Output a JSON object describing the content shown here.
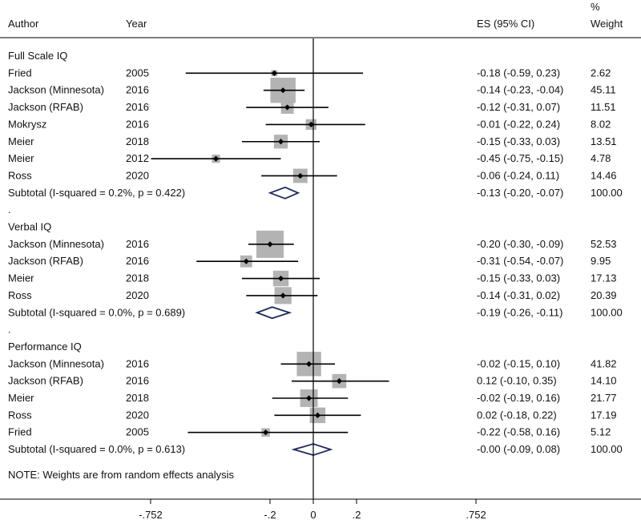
{
  "chart_data": {
    "type": "forest",
    "header": {
      "author": "Author",
      "year": "Year",
      "es": "ES (95% CI)",
      "weight_line1": "%",
      "weight_line2": "Weight"
    },
    "null_line": 0,
    "xlim": [
      -0.752,
      0.752
    ],
    "ticks": [
      {
        "value": -0.752,
        "label": "-.752"
      },
      {
        "value": -0.2,
        "label": "-.2"
      },
      {
        "value": 0,
        "label": "0"
      },
      {
        "value": 0.2,
        "label": ".2"
      },
      {
        "value": 0.752,
        "label": ".752"
      }
    ],
    "groups": [
      {
        "label": "Full Scale IQ",
        "studies": [
          {
            "author": "Fried",
            "year": "2005",
            "es": -0.18,
            "lo": -0.59,
            "hi": 0.23,
            "ci_text": "-0.18 (-0.59, 0.23)",
            "weight": 2.62,
            "weight_text": "2.62"
          },
          {
            "author": "Jackson (Minnesota)",
            "year": "2016",
            "es": -0.14,
            "lo": -0.23,
            "hi": -0.04,
            "ci_text": "-0.14 (-0.23, -0.04)",
            "weight": 45.11,
            "weight_text": "45.11"
          },
          {
            "author": "Jackson (RFAB)",
            "year": "2016",
            "es": -0.12,
            "lo": -0.31,
            "hi": 0.07,
            "ci_text": "-0.12 (-0.31, 0.07)",
            "weight": 11.51,
            "weight_text": "11.51"
          },
          {
            "author": "Mokrysz",
            "year": "2016",
            "es": -0.01,
            "lo": -0.22,
            "hi": 0.24,
            "ci_text": "-0.01 (-0.22, 0.24)",
            "weight": 8.02,
            "weight_text": "8.02"
          },
          {
            "author": "Meier",
            "year": "2018",
            "es": -0.15,
            "lo": -0.33,
            "hi": 0.03,
            "ci_text": "-0.15 (-0.33, 0.03)",
            "weight": 13.51,
            "weight_text": "13.51"
          },
          {
            "author": "Meier",
            "year": "2012",
            "es": -0.45,
            "lo": -0.75,
            "hi": -0.15,
            "ci_text": "-0.45 (-0.75, -0.15)",
            "weight": 4.78,
            "weight_text": "4.78"
          },
          {
            "author": "Ross",
            "year": "2020",
            "es": -0.06,
            "lo": -0.24,
            "hi": 0.11,
            "ci_text": "-0.06 (-0.24, 0.11)",
            "weight": 14.46,
            "weight_text": "14.46"
          }
        ],
        "subtotal": {
          "label": "Subtotal  (I-squared = 0.2%, p = 0.422)",
          "es": -0.13,
          "lo": -0.2,
          "hi": -0.07,
          "ci_text": "-0.13 (-0.20, -0.07)",
          "weight_text": "100.00"
        }
      },
      {
        "label": "Verbal IQ",
        "studies": [
          {
            "author": "Jackson (Minnesota)",
            "year": "2016",
            "es": -0.2,
            "lo": -0.3,
            "hi": -0.09,
            "ci_text": "-0.20 (-0.30, -0.09)",
            "weight": 52.53,
            "weight_text": "52.53"
          },
          {
            "author": "Jackson (RFAB)",
            "year": "2016",
            "es": -0.31,
            "lo": -0.54,
            "hi": -0.07,
            "ci_text": "-0.31 (-0.54, -0.07)",
            "weight": 9.95,
            "weight_text": "9.95"
          },
          {
            "author": "Meier",
            "year": "2018",
            "es": -0.15,
            "lo": -0.33,
            "hi": 0.03,
            "ci_text": "-0.15 (-0.33, 0.03)",
            "weight": 17.13,
            "weight_text": "17.13"
          },
          {
            "author": "Ross",
            "year": "2020",
            "es": -0.14,
            "lo": -0.31,
            "hi": 0.02,
            "ci_text": "-0.14 (-0.31, 0.02)",
            "weight": 20.39,
            "weight_text": "20.39"
          }
        ],
        "subtotal": {
          "label": "Subtotal  (I-squared = 0.0%, p = 0.689)",
          "es": -0.19,
          "lo": -0.26,
          "hi": -0.11,
          "ci_text": "-0.19 (-0.26, -0.11)",
          "weight_text": "100.00"
        }
      },
      {
        "label": "Performance IQ",
        "studies": [
          {
            "author": "Jackson (Minnesota)",
            "year": "2016",
            "es": -0.02,
            "lo": -0.15,
            "hi": 0.1,
            "ci_text": "-0.02 (-0.15, 0.10)",
            "weight": 41.82,
            "weight_text": "41.82"
          },
          {
            "author": "Jackson (RFAB)",
            "year": "2016",
            "es": 0.12,
            "lo": -0.1,
            "hi": 0.35,
            "ci_text": "0.12 (-0.10, 0.35)",
            "weight": 14.1,
            "weight_text": "14.10"
          },
          {
            "author": "Meier",
            "year": "2018",
            "es": -0.02,
            "lo": -0.19,
            "hi": 0.16,
            "ci_text": "-0.02 (-0.19, 0.16)",
            "weight": 21.77,
            "weight_text": "21.77"
          },
          {
            "author": "Ross",
            "year": "2020",
            "es": 0.02,
            "lo": -0.18,
            "hi": 0.22,
            "ci_text": "0.02 (-0.18, 0.22)",
            "weight": 17.19,
            "weight_text": "17.19"
          },
          {
            "author": "Fried",
            "year": "2005",
            "es": -0.22,
            "lo": -0.58,
            "hi": 0.16,
            "ci_text": "-0.22 (-0.58, 0.16)",
            "weight": 5.12,
            "weight_text": "5.12"
          }
        ],
        "subtotal": {
          "label": "Subtotal  (I-squared = 0.0%, p = 0.613)",
          "es": -0.0,
          "lo": -0.09,
          "hi": 0.08,
          "ci_text": "-0.00 (-0.09, 0.08)",
          "weight_text": "100.00"
        }
      }
    ],
    "note": "NOTE: Weights are from random effects analysis",
    "colors": {
      "box": "#b3b3b3",
      "diamond": "#1f2a5c",
      "line": "#000000"
    }
  }
}
